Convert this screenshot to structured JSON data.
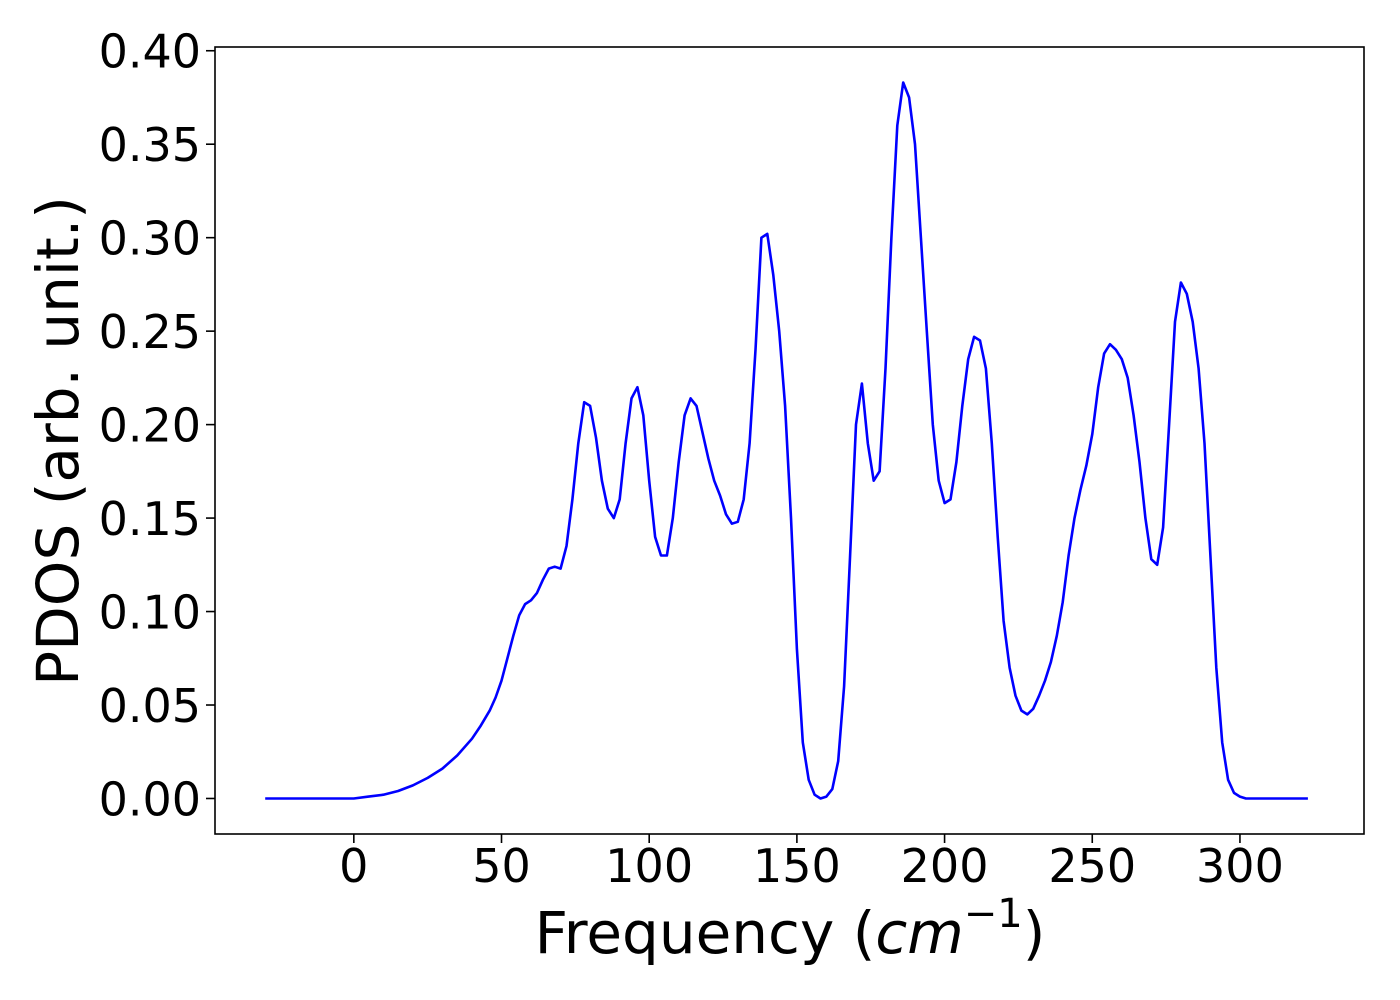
{
  "chart_data": {
    "type": "line",
    "title": "",
    "xlabel": "Frequency (",
    "xlabel_math": "cm",
    "xlabel_sup": "−1",
    "xlabel_close": ")",
    "ylabel": "PDOS (arb. unit.)",
    "xlim": [
      -47,
      342
    ],
    "ylim": [
      -0.019,
      0.402
    ],
    "xticks": [
      0,
      50,
      100,
      150,
      200,
      250,
      300
    ],
    "xtick_labels": [
      "0",
      "50",
      "100",
      "150",
      "200",
      "250",
      "300"
    ],
    "yticks": [
      0.0,
      0.05,
      0.1,
      0.15,
      0.2,
      0.25,
      0.3,
      0.35,
      0.4
    ],
    "ytick_labels": [
      "0.00",
      "0.05",
      "0.10",
      "0.15",
      "0.20",
      "0.25",
      "0.30",
      "0.35",
      "0.40"
    ],
    "grid": false,
    "legend": "none",
    "colors": {
      "line": "#0000ff",
      "axes": "#000000",
      "background": "#ffffff"
    },
    "series": [
      {
        "name": "",
        "x": [
          -30,
          -20,
          -10,
          0,
          5,
          10,
          15,
          20,
          25,
          30,
          35,
          40,
          43,
          46,
          48,
          50,
          52,
          54,
          56,
          58,
          60,
          62,
          64,
          66,
          68,
          70,
          72,
          74,
          76,
          78,
          80,
          82,
          84,
          86,
          88,
          90,
          92,
          94,
          96,
          98,
          100,
          102,
          104,
          106,
          108,
          110,
          112,
          114,
          116,
          118,
          120,
          122,
          124,
          126,
          128,
          130,
          132,
          134,
          136,
          138,
          140,
          142,
          144,
          146,
          148,
          150,
          152,
          154,
          156,
          158,
          160,
          162,
          164,
          166,
          168,
          170,
          172,
          174,
          176,
          178,
          180,
          182,
          184,
          186,
          188,
          190,
          192,
          194,
          196,
          198,
          200,
          202,
          204,
          206,
          208,
          210,
          212,
          214,
          216,
          218,
          220,
          222,
          224,
          226,
          228,
          230,
          232,
          234,
          236,
          238,
          240,
          242,
          244,
          246,
          248,
          250,
          252,
          254,
          256,
          258,
          260,
          262,
          264,
          266,
          268,
          270,
          272,
          274,
          276,
          278,
          280,
          282,
          284,
          286,
          288,
          290,
          292,
          294,
          296,
          298,
          300,
          302,
          305,
          310,
          315,
          323
        ],
        "y": [
          0.0,
          0.0,
          0.0,
          0.0,
          0.001,
          0.002,
          0.004,
          0.007,
          0.011,
          0.016,
          0.023,
          0.032,
          0.039,
          0.047,
          0.054,
          0.063,
          0.075,
          0.087,
          0.098,
          0.104,
          0.106,
          0.11,
          0.117,
          0.123,
          0.124,
          0.123,
          0.135,
          0.16,
          0.19,
          0.212,
          0.21,
          0.193,
          0.17,
          0.155,
          0.15,
          0.16,
          0.19,
          0.214,
          0.22,
          0.205,
          0.17,
          0.14,
          0.13,
          0.13,
          0.15,
          0.18,
          0.205,
          0.214,
          0.21,
          0.196,
          0.182,
          0.17,
          0.162,
          0.152,
          0.147,
          0.148,
          0.16,
          0.19,
          0.24,
          0.3,
          0.302,
          0.28,
          0.25,
          0.21,
          0.15,
          0.08,
          0.03,
          0.01,
          0.002,
          0.0,
          0.001,
          0.005,
          0.02,
          0.06,
          0.13,
          0.2,
          0.222,
          0.19,
          0.17,
          0.175,
          0.23,
          0.3,
          0.36,
          0.383,
          0.375,
          0.35,
          0.3,
          0.25,
          0.2,
          0.17,
          0.158,
          0.16,
          0.18,
          0.21,
          0.235,
          0.247,
          0.245,
          0.23,
          0.19,
          0.14,
          0.095,
          0.07,
          0.055,
          0.047,
          0.045,
          0.048,
          0.055,
          0.063,
          0.073,
          0.087,
          0.105,
          0.13,
          0.15,
          0.165,
          0.178,
          0.195,
          0.22,
          0.238,
          0.243,
          0.24,
          0.235,
          0.225,
          0.205,
          0.18,
          0.15,
          0.128,
          0.125,
          0.145,
          0.2,
          0.255,
          0.276,
          0.27,
          0.255,
          0.23,
          0.19,
          0.13,
          0.07,
          0.03,
          0.01,
          0.003,
          0.001,
          0.0,
          0.0,
          0.0,
          0.0,
          0.0
        ]
      }
    ]
  }
}
